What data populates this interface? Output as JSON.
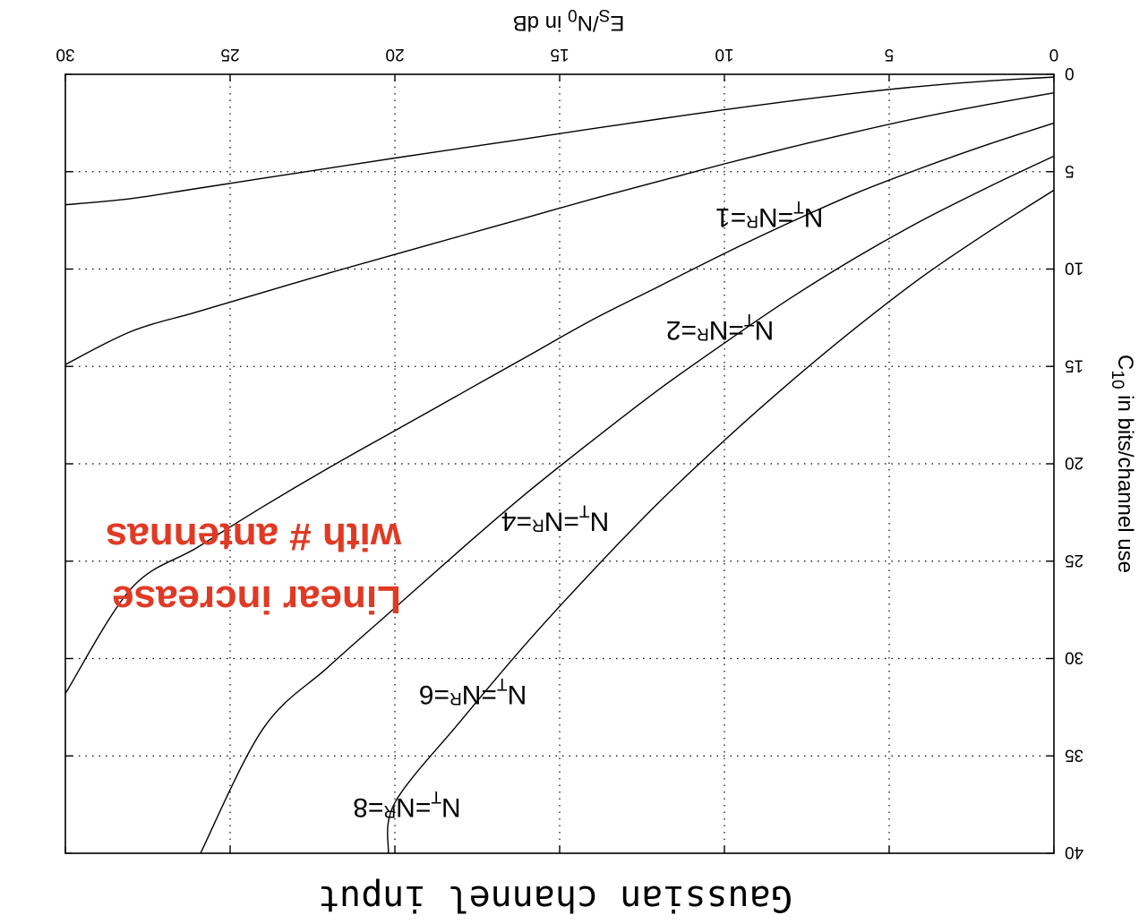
{
  "chart_data": {
    "type": "line",
    "orientation": "rotated-180",
    "title": "Gaussian channel input",
    "xlabel": {
      "main": "E",
      "sub1": "S",
      "mid": "/N",
      "sub2": "0",
      "rest": " in dB"
    },
    "ylabel": {
      "main": "C",
      "sub": "10",
      "rest": " in bits/channel use"
    },
    "xlim": [
      0,
      30
    ],
    "ylim": [
      0,
      40
    ],
    "xticks": [
      0,
      5,
      10,
      15,
      20,
      25,
      30
    ],
    "yticks": [
      0,
      5,
      10,
      15,
      20,
      25,
      30,
      35,
      40
    ],
    "grid": true,
    "series": [
      {
        "name_main": "N",
        "name_sub1": "T",
        "name_mid": "=N",
        "name_sub2": "R",
        "name_end": "=1",
        "antennas": 1,
        "label_at": [
          7.0,
          6.9
        ],
        "points": [
          [
            0,
            0.14
          ],
          [
            2,
            0.34
          ],
          [
            4,
            0.61
          ],
          [
            6,
            0.96
          ],
          [
            8,
            1.37
          ],
          [
            10,
            1.82
          ],
          [
            12,
            2.3
          ],
          [
            14,
            2.79
          ],
          [
            16,
            3.3
          ],
          [
            18,
            3.8
          ],
          [
            20,
            4.3
          ],
          [
            22,
            4.82
          ],
          [
            24,
            5.34
          ],
          [
            26,
            5.86
          ],
          [
            28,
            6.38
          ],
          [
            30,
            6.7
          ]
        ]
      },
      {
        "name_main": "N",
        "name_sub1": "T",
        "name_mid": "=N",
        "name_sub2": "R",
        "name_end": "=2",
        "antennas": 2,
        "label_at": [
          8.5,
          12.7
        ],
        "points": [
          [
            0,
            0.95
          ],
          [
            2,
            1.55
          ],
          [
            4,
            2.2
          ],
          [
            6,
            2.95
          ],
          [
            8,
            3.75
          ],
          [
            10,
            4.6
          ],
          [
            12,
            5.5
          ],
          [
            14,
            6.4
          ],
          [
            16,
            7.35
          ],
          [
            18,
            8.3
          ],
          [
            20,
            9.25
          ],
          [
            22,
            10.2
          ],
          [
            24,
            11.2
          ],
          [
            26,
            12.2
          ],
          [
            28,
            13.2
          ],
          [
            30,
            14.9
          ]
        ]
      },
      {
        "name_main": "N",
        "name_sub1": "T",
        "name_mid": "=N",
        "name_sub2": "R",
        "name_end": "=4",
        "antennas": 4,
        "label_at": [
          13.5,
          22.5
        ],
        "points": [
          [
            0,
            2.5
          ],
          [
            2,
            3.6
          ],
          [
            4,
            4.8
          ],
          [
            6,
            6.1
          ],
          [
            8,
            7.6
          ],
          [
            10,
            9.2
          ],
          [
            12,
            10.9
          ],
          [
            14,
            12.6
          ],
          [
            16,
            14.5
          ],
          [
            18,
            16.4
          ],
          [
            20,
            18.3
          ],
          [
            22,
            20.2
          ],
          [
            24,
            22.2
          ],
          [
            26,
            24.3
          ],
          [
            28,
            26.4
          ],
          [
            30,
            31.8
          ]
        ]
      },
      {
        "name_main": "N",
        "name_sub1": "T",
        "name_mid": "=N",
        "name_sub2": "R",
        "name_end": "=6",
        "antennas": 6,
        "label_at": [
          16.0,
          31.4
        ],
        "points": [
          [
            0,
            4.2
          ],
          [
            2,
            5.8
          ],
          [
            4,
            7.5
          ],
          [
            6,
            9.4
          ],
          [
            8,
            11.5
          ],
          [
            10,
            13.8
          ],
          [
            12,
            16.2
          ],
          [
            14,
            18.8
          ],
          [
            16,
            21.5
          ],
          [
            18,
            24.4
          ],
          [
            20,
            27.4
          ],
          [
            22,
            30.4
          ],
          [
            24,
            33.6
          ],
          [
            25.9,
            40
          ]
        ]
      },
      {
        "name_main": "N",
        "name_sub1": "T",
        "name_mid": "=N",
        "name_sub2": "R",
        "name_end": "=8",
        "antennas": 8,
        "label_at": [
          18.0,
          37.2
        ],
        "points": [
          [
            0,
            5.95
          ],
          [
            2,
            8.1
          ],
          [
            4,
            10.4
          ],
          [
            6,
            13.0
          ],
          [
            8,
            15.8
          ],
          [
            10,
            18.8
          ],
          [
            12,
            22.0
          ],
          [
            14,
            25.5
          ],
          [
            16,
            29.2
          ],
          [
            18,
            33.2
          ],
          [
            20,
            37.4
          ],
          [
            20.2,
            40
          ]
        ]
      }
    ],
    "annotations": [
      {
        "line1": "Linear increase",
        "line2": "with # antennas",
        "color": "#e03a25"
      }
    ]
  }
}
